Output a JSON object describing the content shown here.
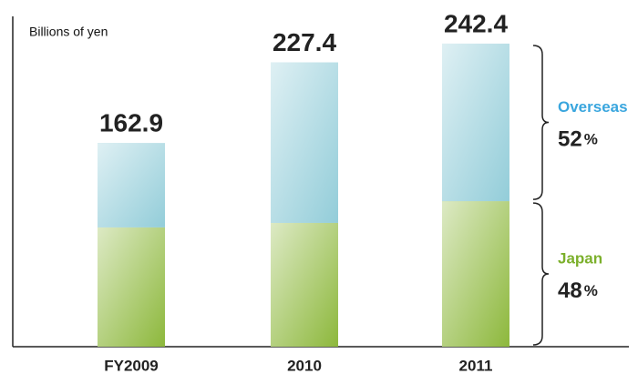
{
  "chart_data": {
    "type": "stacked-bar",
    "y_label": "Billions of yen",
    "categories": [
      "FY2009",
      "2010",
      "2011"
    ],
    "totals": [
      162.9,
      227.4,
      242.4
    ],
    "series": [
      {
        "name": "Japan",
        "color": "#8db83c",
        "label_color": "#7cb02c",
        "values": [
          95.4,
          99.0,
          116.4
        ],
        "share_label": "48%"
      },
      {
        "name": "Overseas",
        "color": "#93cdd9",
        "label_color": "#3aa6de",
        "values": [
          67.5,
          128.4,
          126.0
        ],
        "share_label": "52%"
      }
    ]
  }
}
